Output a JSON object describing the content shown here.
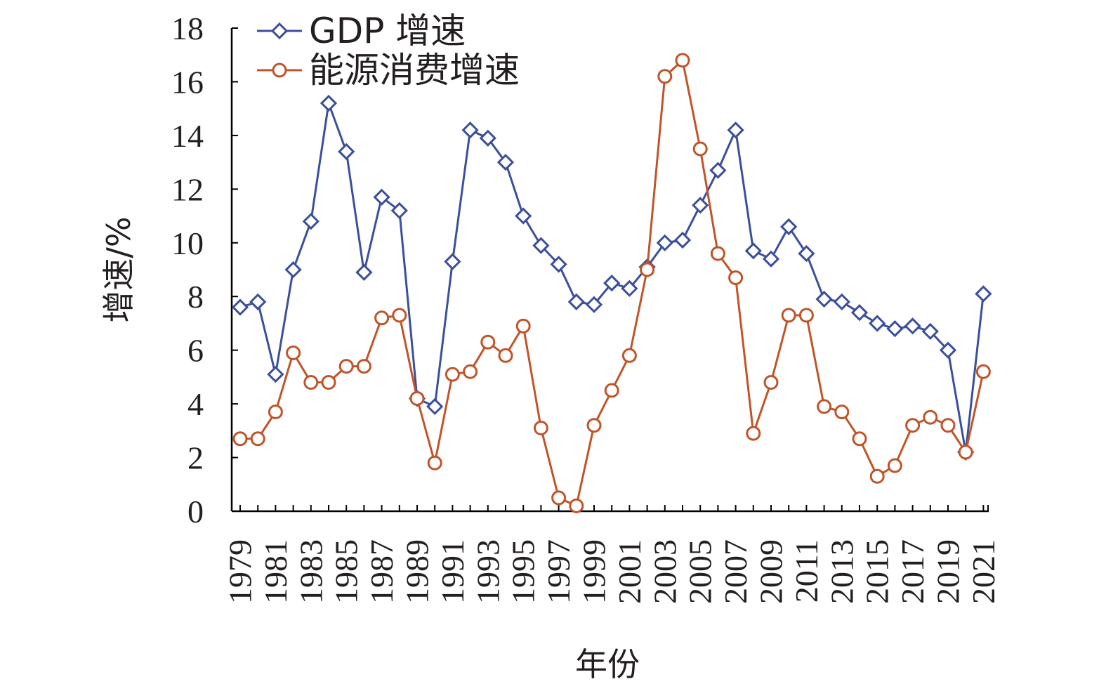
{
  "chart_data": {
    "type": "line",
    "xlabel": "年份",
    "ylabel": "增速/%",
    "ylim": [
      0,
      18
    ],
    "yticks": [
      0,
      2,
      4,
      6,
      8,
      10,
      12,
      14,
      16,
      18
    ],
    "x": [
      1979,
      1980,
      1981,
      1982,
      1983,
      1984,
      1985,
      1986,
      1987,
      1988,
      1989,
      1990,
      1991,
      1992,
      1993,
      1994,
      1995,
      1996,
      1997,
      1998,
      1999,
      2000,
      2001,
      2002,
      2003,
      2004,
      2005,
      2006,
      2007,
      2008,
      2009,
      2010,
      2011,
      2012,
      2013,
      2014,
      2015,
      2016,
      2017,
      2018,
      2019,
      2020,
      2021
    ],
    "xtick_labels": [
      "1979",
      "1981",
      "1983",
      "1985",
      "1987",
      "1989",
      "1991",
      "1993",
      "1995",
      "1997",
      "1999",
      "2001",
      "2003",
      "2005",
      "2007",
      "2009",
      "2011",
      "2013",
      "2015",
      "2017",
      "2019",
      "2021"
    ],
    "grid": false,
    "legend_position": "top-left",
    "series": [
      {
        "name": "GDP 增速",
        "color": "#3b4f9b",
        "marker": "diamond",
        "values": [
          7.6,
          7.8,
          5.1,
          9.0,
          10.8,
          15.2,
          13.4,
          8.9,
          11.7,
          11.2,
          4.2,
          3.9,
          9.3,
          14.2,
          13.9,
          13.0,
          11.0,
          9.9,
          9.2,
          7.8,
          7.7,
          8.5,
          8.3,
          9.1,
          10.0,
          10.1,
          11.4,
          12.7,
          14.2,
          9.7,
          9.4,
          10.6,
          9.6,
          7.9,
          7.8,
          7.4,
          7.0,
          6.8,
          6.9,
          6.7,
          6.0,
          2.2,
          8.1
        ]
      },
      {
        "name": "能源消费增速",
        "color": "#c0542a",
        "marker": "circle",
        "values": [
          2.7,
          2.7,
          3.7,
          5.9,
          4.8,
          4.8,
          5.4,
          5.4,
          7.2,
          7.3,
          4.2,
          1.8,
          5.1,
          5.2,
          6.3,
          5.8,
          6.9,
          3.1,
          0.5,
          0.2,
          3.2,
          4.5,
          5.8,
          9.0,
          16.2,
          16.8,
          13.5,
          9.6,
          8.7,
          2.9,
          4.8,
          7.3,
          7.3,
          3.9,
          3.7,
          2.7,
          1.3,
          1.7,
          3.2,
          3.5,
          3.2,
          2.2,
          5.2
        ]
      }
    ]
  }
}
